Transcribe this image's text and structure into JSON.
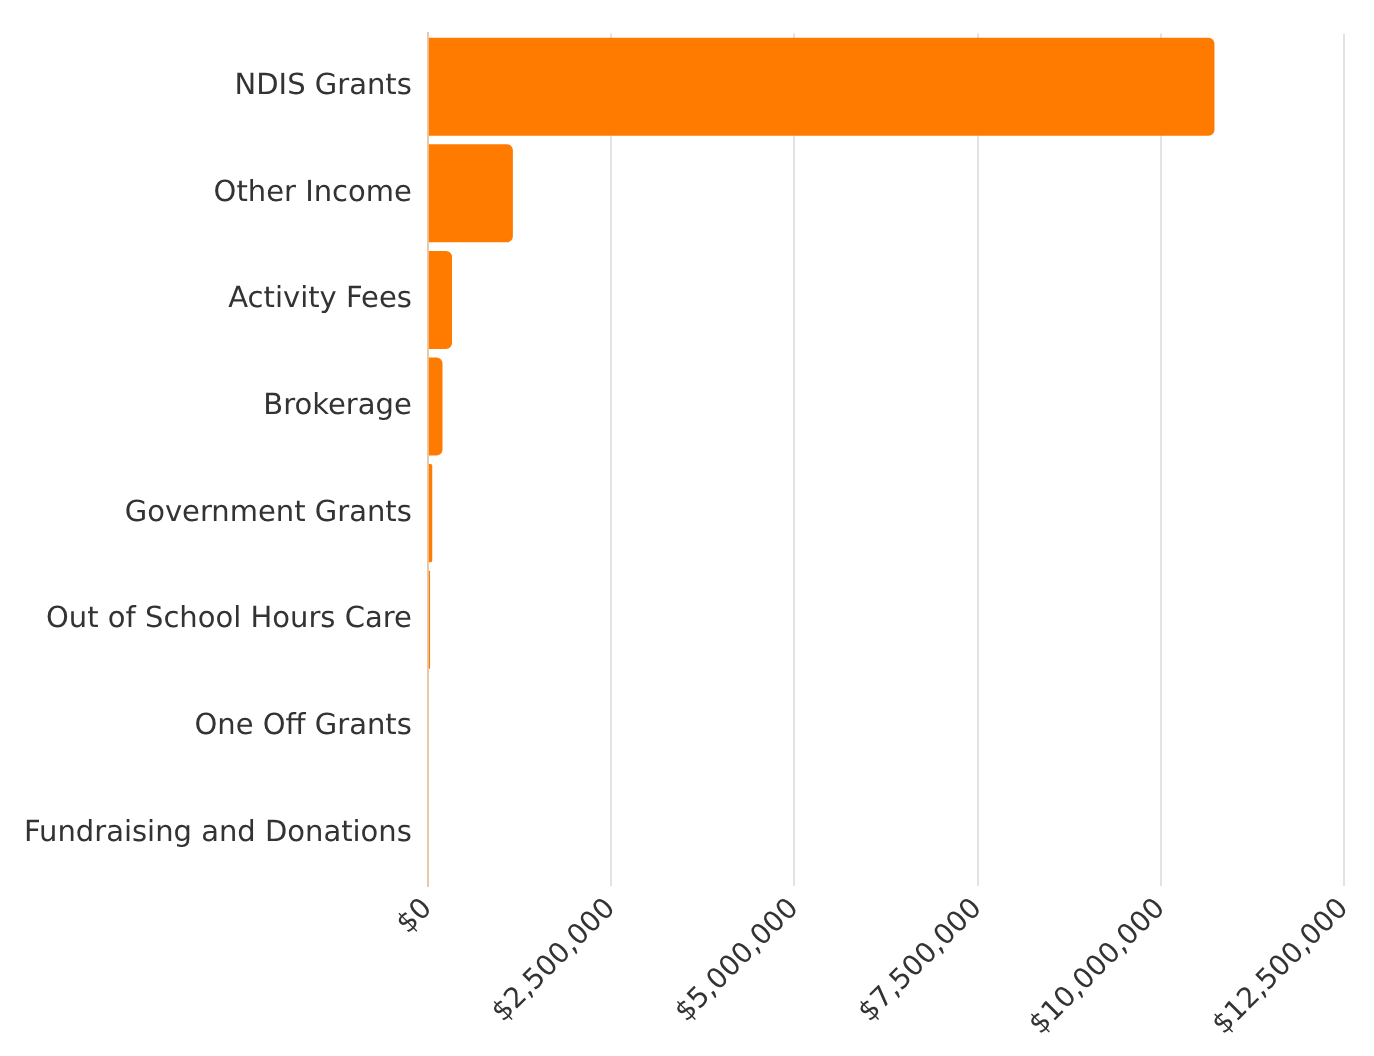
{
  "chart_data": {
    "type": "bar",
    "orientation": "horizontal",
    "categories": [
      "NDIS Grants",
      "Other Income",
      "Activity Fees",
      "Brokerage",
      "Government Grants",
      "Out of School Hours Care",
      "One Off Grants",
      "Fundraising and Donations"
    ],
    "values": [
      10730000,
      1160000,
      330000,
      200000,
      60000,
      30000,
      null,
      null
    ],
    "color": "#ff7b00",
    "xlim": [
      0,
      12500000
    ],
    "xticks": [
      {
        "value": 0,
        "label": "$0"
      },
      {
        "value": 2500000,
        "label": "$2,500,000"
      },
      {
        "value": 5000000,
        "label": "$5,000,000"
      },
      {
        "value": 7500000,
        "label": "$7,500,000"
      },
      {
        "value": 10000000,
        "label": "$10,000,000"
      },
      {
        "value": 12500000,
        "label": "$12,500,000"
      }
    ],
    "grid": "x",
    "legend": false
  }
}
